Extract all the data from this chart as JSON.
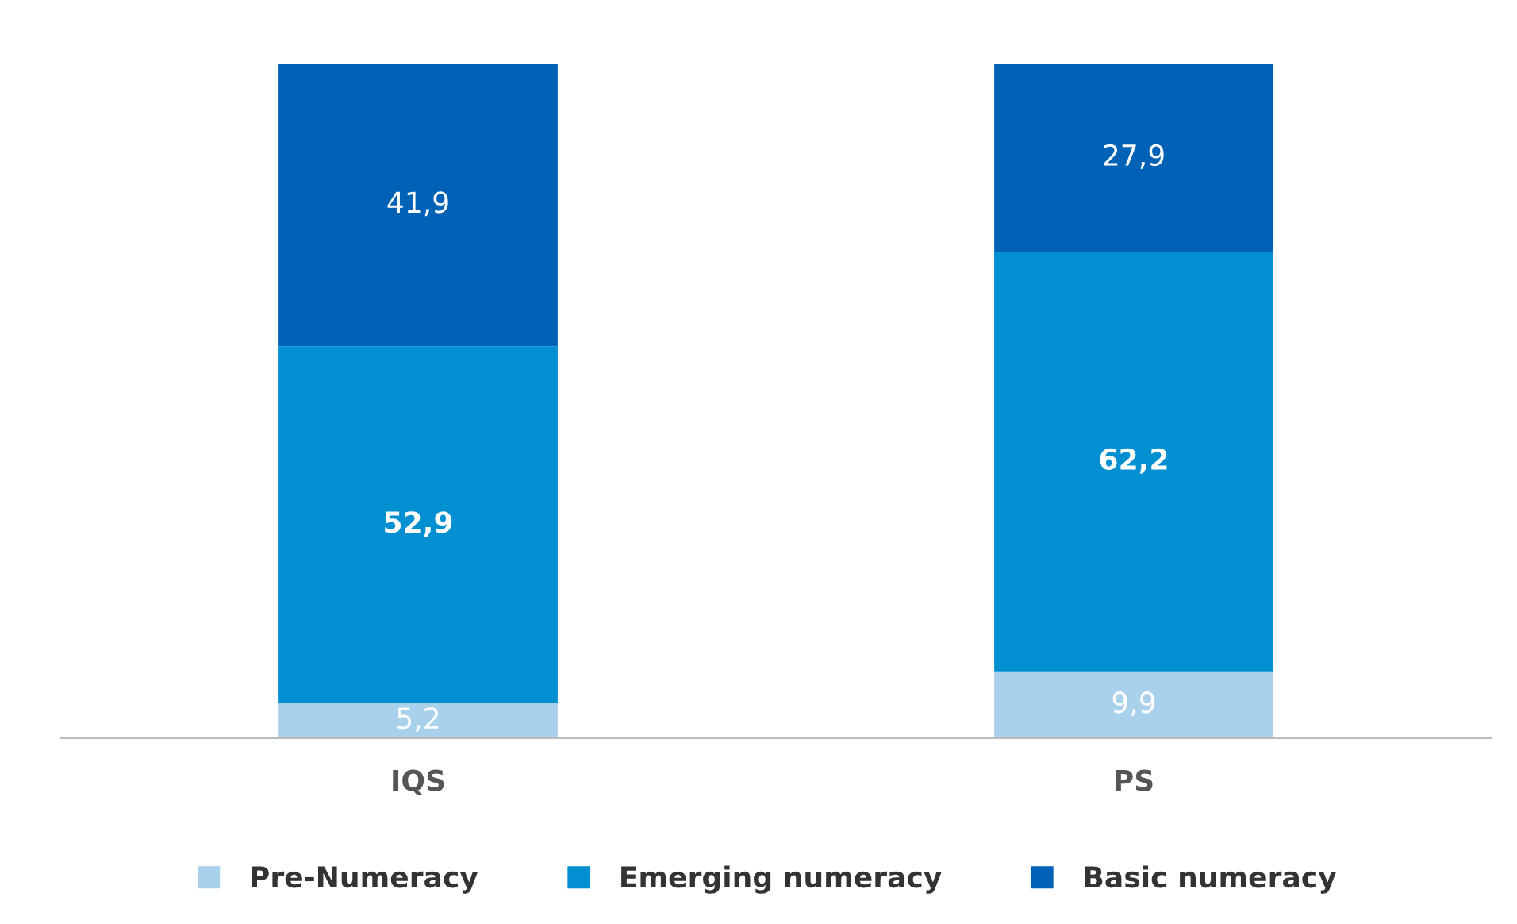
{
  "chart_data": {
    "type": "bar",
    "stacked": true,
    "categories": [
      "IQS",
      "PS"
    ],
    "series": [
      {
        "name": "Pre-Numeracy",
        "color": "#a9d1eb",
        "values": [
          5.2,
          9.9
        ],
        "value_labels": [
          "5,2",
          "9,9"
        ]
      },
      {
        "name": "Emerging numeracy",
        "color": "#008fd1",
        "values": [
          52.9,
          62.2
        ],
        "value_labels": [
          "52,9",
          "62,2"
        ]
      },
      {
        "name": "Basic numeracy",
        "color": "#0062b7",
        "values": [
          41.9,
          27.9
        ],
        "value_labels": [
          "41,9",
          "27,9"
        ]
      }
    ],
    "legend": "bottom",
    "grid": false
  }
}
